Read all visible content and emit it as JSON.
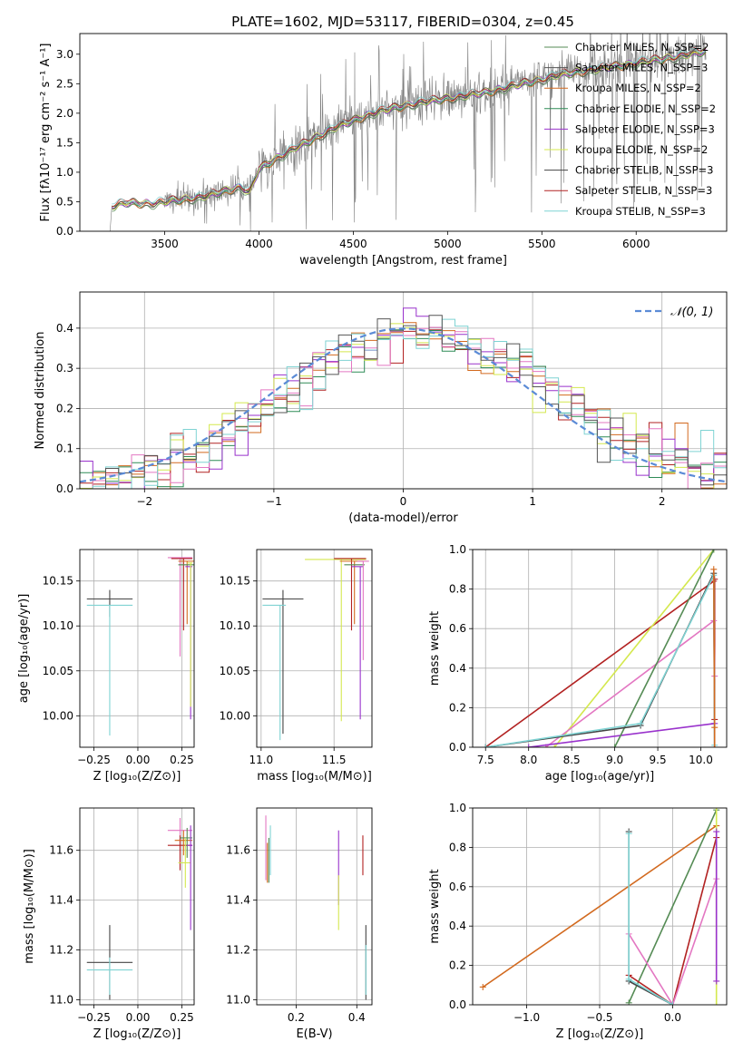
{
  "figure": {
    "title": "PLATE=1602, MJD=53117, FIBERID=0304, z=0.45"
  },
  "chart_data": [
    {
      "id": "spectrum",
      "type": "line",
      "xlabel": "wavelength [Angstrom, rest frame]",
      "ylabel": "Flux [fλ10⁻¹⁷ erg cm⁻² s⁻¹ A⁻¹]",
      "xlim": [
        3050,
        6480
      ],
      "ylim": [
        0,
        3.35
      ],
      "xticks": [
        "3500",
        "4000",
        "4500",
        "5000",
        "5500",
        "6000"
      ],
      "yticks": [
        "0.0",
        "0.5",
        "1.0",
        "1.5",
        "2.0",
        "2.5",
        "3.0"
      ],
      "grid": false,
      "legend_position": "top-right",
      "observed": {
        "color": "#7f7f7f",
        "x_start": 3210,
        "x_end": 6370
      },
      "continuum_points": [
        [
          3210,
          0.0
        ],
        [
          3220,
          0.42
        ],
        [
          3300,
          0.48
        ],
        [
          3450,
          0.47
        ],
        [
          3550,
          0.52
        ],
        [
          3700,
          0.58
        ],
        [
          3900,
          0.75
        ],
        [
          3950,
          0.65
        ],
        [
          4000,
          1.05
        ],
        [
          4100,
          1.25
        ],
        [
          4250,
          1.5
        ],
        [
          4400,
          1.75
        ],
        [
          4600,
          2.0
        ],
        [
          4800,
          2.15
        ],
        [
          5000,
          2.25
        ],
        [
          5200,
          2.35
        ],
        [
          5400,
          2.5
        ],
        [
          5600,
          2.65
        ],
        [
          5800,
          2.75
        ],
        [
          6000,
          2.85
        ],
        [
          6200,
          2.95
        ],
        [
          6370,
          3.05
        ]
      ],
      "series": [
        {
          "name": "Chabrier MILES, N_SSP=2",
          "color": "#548b54"
        },
        {
          "name": "Salpeter MILES, N_SSP=3",
          "color": "#555555"
        },
        {
          "name": "Kroupa MILES, N_SSP=2",
          "color": "#d2691e"
        },
        {
          "name": "Chabrier ELODIE, N_SSP=2",
          "color": "#2e8b57"
        },
        {
          "name": "Salpeter ELODIE, N_SSP=3",
          "color": "#9932cc"
        },
        {
          "name": "Kroupa ELODIE, N_SSP=2",
          "color": "#d4e84e"
        },
        {
          "name": "Chabrier STELIB, N_SSP=3",
          "color": "#444444"
        },
        {
          "name": "Salpeter STELIB, N_SSP=3",
          "color": "#b22222"
        },
        {
          "name": "Kroupa STELIB, N_SSP=3",
          "color": "#7fd3d3"
        }
      ]
    },
    {
      "id": "residuals",
      "type": "line",
      "xlabel": "(data-model)/error",
      "ylabel": "Normed distribution",
      "xlim": [
        -2.5,
        2.5
      ],
      "ylim": [
        0,
        0.49
      ],
      "xticks": [
        -2,
        -1,
        0,
        1,
        2
      ],
      "xtick_labels": [
        "−2",
        "−1",
        "0",
        "1",
        "2"
      ],
      "yticks": [
        "0.0",
        "0.1",
        "0.2",
        "0.3",
        "0.4"
      ],
      "grid": true,
      "legend": "𝒩(0, 1)",
      "legend_position": "top-right",
      "gaussian": {
        "mean": 0,
        "sigma": 1,
        "color": "#5b8bd6"
      },
      "hist_colors": [
        "#d2691e",
        "#b22222",
        "#2e8b57",
        "#9932cc",
        "#d4e84e",
        "#e377c2",
        "#7fd3d3",
        "#555555"
      ],
      "hist_bin_width": 0.1,
      "hist_range": [
        -2.5,
        2.5
      ]
    },
    {
      "id": "age-vs-Z",
      "type": "errorbar",
      "xlabel": "Z [log₁₀(Z/Z⊙)]",
      "ylabel": "age  [log₁₀(age/yr)]",
      "xlim": [
        -0.33,
        0.32
      ],
      "ylim": [
        9.965,
        10.185
      ],
      "xticks": [
        "−0.25",
        "0.00",
        "0.25"
      ],
      "xtick_values": [
        -0.25,
        0,
        0.25
      ],
      "yticks": [
        "10.00",
        "10.05",
        "10.10",
        "10.15"
      ],
      "ytick_values": [
        10.0,
        10.05,
        10.1,
        10.15
      ],
      "grid": true,
      "points": [
        {
          "x": -0.16,
          "y": 10.13,
          "xerr": [
            0.13,
            0.13
          ],
          "yerr": [
            0.02,
            0.01
          ],
          "color": "#444444"
        },
        {
          "x": -0.16,
          "y": 10.123,
          "xerr": [
            0.13,
            0.13
          ],
          "yerr": [
            0.145,
            0.0
          ],
          "color": "#7fd3d3"
        },
        {
          "x": 0.24,
          "y": 10.176,
          "xerr": [
            0.07,
            0.07
          ],
          "yerr": [
            0.11,
            0.0
          ],
          "color": "#e377c2"
        },
        {
          "x": 0.26,
          "y": 10.175,
          "xerr": [
            0.07,
            0.05
          ],
          "yerr": [
            0.08,
            0.0
          ],
          "color": "#b22222"
        },
        {
          "x": 0.28,
          "y": 10.172,
          "xerr": [
            0.05,
            0.04
          ],
          "yerr": [
            0.07,
            0.0
          ],
          "color": "#d2691e"
        },
        {
          "x": 0.28,
          "y": 10.168,
          "xerr": [
            0.05,
            0.04
          ],
          "yerr": [
            0.0,
            0.0
          ],
          "color": "#548b54"
        },
        {
          "x": 0.3,
          "y": 10.166,
          "xerr": [
            0.03,
            0.01
          ],
          "yerr": [
            0.17,
            0.0
          ],
          "color": "#9932cc"
        },
        {
          "x": 0.3,
          "y": 10.17,
          "xerr": [
            0.02,
            0.01
          ],
          "yerr": [
            0.16,
            0.0
          ],
          "color": "#d4e84e"
        }
      ]
    },
    {
      "id": "age-vs-mass",
      "type": "errorbar",
      "xlabel": "mass [log₁₀(M/M⊙)]",
      "ylabel": "",
      "xlim": [
        10.97,
        11.76
      ],
      "ylim": [
        9.965,
        10.185
      ],
      "xticks": [
        "11.0",
        "11.5"
      ],
      "xtick_values": [
        11.0,
        11.5
      ],
      "yticks": [
        "10.00",
        "10.05",
        "10.10",
        "10.15"
      ],
      "ytick_values": [
        10.0,
        10.05,
        10.1,
        10.15
      ],
      "grid": true,
      "points": [
        {
          "x": 11.15,
          "y": 10.13,
          "xerr": [
            0.14,
            0.14
          ],
          "yerr": [
            0.15,
            0.01
          ],
          "color": "#444444"
        },
        {
          "x": 11.13,
          "y": 10.123,
          "xerr": [
            0.12,
            0.04
          ],
          "yerr": [
            0.15,
            0.0
          ],
          "color": "#7fd3d3"
        },
        {
          "x": 11.55,
          "y": 10.174,
          "xerr": [
            0.25,
            0.17
          ],
          "yerr": [
            0.18,
            0.0
          ],
          "color": "#d4e84e"
        },
        {
          "x": 11.62,
          "y": 10.175,
          "xerr": [
            0.12,
            0.1
          ],
          "yerr": [
            0.08,
            0.0
          ],
          "color": "#b22222"
        },
        {
          "x": 11.64,
          "y": 10.172,
          "xerr": [
            0.1,
            0.06
          ],
          "yerr": [
            0.07,
            0.0
          ],
          "color": "#d2691e"
        },
        {
          "x": 11.65,
          "y": 10.168,
          "xerr": [
            0.08,
            0.06
          ],
          "yerr": [
            0.0,
            0.0
          ],
          "color": "#548b54"
        },
        {
          "x": 11.68,
          "y": 10.166,
          "xerr": [
            0.06,
            0.02
          ],
          "yerr": [
            0.17,
            0.0
          ],
          "color": "#9932cc"
        },
        {
          "x": 11.7,
          "y": 10.172,
          "xerr": [
            0.04,
            0.04
          ],
          "yerr": [
            0.11,
            0.0
          ],
          "color": "#e377c2"
        }
      ]
    },
    {
      "id": "weight-vs-age",
      "type": "line",
      "xlabel": "age  [log₁₀(age/yr)]",
      "ylabel": "mass weight",
      "xlim": [
        7.35,
        10.3
      ],
      "ylim": [
        0,
        1.0
      ],
      "xticks": [
        "7.5",
        "8.0",
        "8.5",
        "9.0",
        "9.5",
        "10.0"
      ],
      "xtick_values": [
        7.5,
        8.0,
        8.5,
        9.0,
        9.5,
        10.0
      ],
      "yticks": [
        "0.0",
        "0.2",
        "0.4",
        "0.6",
        "0.8",
        "1.0"
      ],
      "ytick_values": [
        0,
        0.2,
        0.4,
        0.6,
        0.8,
        1.0
      ],
      "grid": true,
      "series": [
        {
          "color": "#b22222",
          "x": [
            7.5,
            10.15,
            10.16,
            10.16
          ],
          "y": [
            0.0,
            0.84,
            0.85,
            0.14
          ]
        },
        {
          "color": "#d4e84e",
          "x": [
            8.3,
            10.15
          ],
          "y": [
            0.0,
            1.0
          ]
        },
        {
          "color": "#e377c2",
          "x": [
            8.2,
            10.15,
            10.16
          ],
          "y": [
            0.0,
            0.64,
            0.36
          ]
        },
        {
          "color": "#9932cc",
          "x": [
            8.0,
            10.16
          ],
          "y": [
            0.0,
            0.12
          ]
        },
        {
          "color": "#548b54",
          "x": [
            9.0,
            10.15
          ],
          "y": [
            0.0,
            1.0
          ]
        },
        {
          "color": "#444444",
          "x": [
            7.5,
            9.3,
            10.15,
            10.16
          ],
          "y": [
            0.0,
            0.11,
            0.88,
            0.0
          ]
        },
        {
          "color": "#7fd3d3",
          "x": [
            7.5,
            9.3,
            10.15,
            10.16
          ],
          "y": [
            0.0,
            0.12,
            0.87,
            0.01
          ]
        },
        {
          "color": "#d2691e",
          "x": [
            10.15,
            10.16,
            10.16
          ],
          "y": [
            0.9,
            0.1,
            0.0
          ]
        }
      ]
    },
    {
      "id": "mass-vs-Z",
      "type": "errorbar",
      "xlabel": "Z [log₁₀(Z/Z⊙)]",
      "ylabel": "mass [log₁₀(M/M⊙)]",
      "xlim": [
        -0.33,
        0.32
      ],
      "ylim": [
        10.98,
        11.77
      ],
      "xticks": [
        "−0.25",
        "0.00",
        "0.25"
      ],
      "xtick_values": [
        -0.25,
        0,
        0.25
      ],
      "yticks": [
        "11.0",
        "11.2",
        "11.4",
        "11.6"
      ],
      "ytick_values": [
        11.0,
        11.2,
        11.4,
        11.6
      ],
      "grid": true,
      "points": [
        {
          "x": -0.16,
          "y": 11.15,
          "xerr": [
            0.13,
            0.13
          ],
          "yerr": [
            0.15,
            0.15
          ],
          "color": "#444444"
        },
        {
          "x": -0.16,
          "y": 11.12,
          "xerr": [
            0.13,
            0.13
          ],
          "yerr": [
            0.1,
            0.05
          ],
          "color": "#7fd3d3"
        },
        {
          "x": 0.24,
          "y": 11.68,
          "xerr": [
            0.07,
            0.07
          ],
          "yerr": [
            0.16,
            0.05
          ],
          "color": "#e377c2"
        },
        {
          "x": 0.24,
          "y": 11.62,
          "xerr": [
            0.07,
            0.07
          ],
          "yerr": [
            0.1,
            0.04
          ],
          "color": "#b22222"
        },
        {
          "x": 0.26,
          "y": 11.64,
          "xerr": [
            0.05,
            0.05
          ],
          "yerr": [
            0.06,
            0.04
          ],
          "color": "#d2691e"
        },
        {
          "x": 0.28,
          "y": 11.65,
          "xerr": [
            0.04,
            0.03
          ],
          "yerr": [
            0.08,
            0.04
          ],
          "color": "#548b54"
        },
        {
          "x": 0.27,
          "y": 11.55,
          "xerr": [
            0.04,
            0.03
          ],
          "yerr": [
            0.1,
            0.1
          ],
          "color": "#d4e84e"
        },
        {
          "x": 0.3,
          "y": 11.62,
          "xerr": [
            0.02,
            0.01
          ],
          "yerr": [
            0.34,
            0.08
          ],
          "color": "#9932cc"
        }
      ]
    },
    {
      "id": "mass-vs-EBV",
      "type": "errorbar",
      "xlabel": "E(B-V)",
      "ylabel": "",
      "xlim": [
        0.07,
        0.45
      ],
      "ylim": [
        10.98,
        11.77
      ],
      "xticks": [
        "0.2",
        "0.4"
      ],
      "xtick_values": [
        0.2,
        0.4
      ],
      "yticks": [
        "11.0",
        "11.2",
        "11.4",
        "11.6"
      ],
      "ytick_values": [
        11.0,
        11.2,
        11.4,
        11.6
      ],
      "grid": true,
      "points": [
        {
          "x": 0.1,
          "y": 11.62,
          "xerr": [
            0,
            0
          ],
          "yerr": [
            0.14,
            0.12
          ],
          "color": "#e377c2"
        },
        {
          "x": 0.105,
          "y": 11.55,
          "xerr": [
            0,
            0
          ],
          "yerr": [
            0.08,
            0.08
          ],
          "color": "#d2691e"
        },
        {
          "x": 0.11,
          "y": 11.57,
          "xerr": [
            0,
            0
          ],
          "yerr": [
            0.1,
            0.08
          ],
          "color": "#548b54"
        },
        {
          "x": 0.115,
          "y": 11.6,
          "xerr": [
            0,
            0
          ],
          "yerr": [
            0.1,
            0.1
          ],
          "color": "#7fd3d3"
        },
        {
          "x": 0.34,
          "y": 11.52,
          "xerr": [
            0,
            0
          ],
          "yerr": [
            0.14,
            0.16
          ],
          "color": "#9932cc"
        },
        {
          "x": 0.34,
          "y": 11.4,
          "xerr": [
            0,
            0
          ],
          "yerr": [
            0.12,
            0.1
          ],
          "color": "#d4e84e"
        },
        {
          "x": 0.42,
          "y": 11.58,
          "xerr": [
            0,
            0
          ],
          "yerr": [
            0.08,
            0.08
          ],
          "color": "#b22222"
        },
        {
          "x": 0.43,
          "y": 11.15,
          "xerr": [
            0,
            0
          ],
          "yerr": [
            0.15,
            0.15
          ],
          "color": "#444444"
        },
        {
          "x": 0.43,
          "y": 11.12,
          "xerr": [
            0,
            0
          ],
          "yerr": [
            0.1,
            0.1
          ],
          "color": "#7fd3d3"
        }
      ]
    },
    {
      "id": "weight-vs-Z",
      "type": "line",
      "xlabel": "Z [log₁₀(Z/Z⊙)]",
      "ylabel": "mass weight",
      "xlim": [
        -1.37,
        0.37
      ],
      "ylim": [
        0,
        1.0
      ],
      "xticks": [
        "−1.0",
        "−0.5",
        "0.0"
      ],
      "xtick_values": [
        -1.0,
        -0.5,
        0.0
      ],
      "yticks": [
        "0.0",
        "0.2",
        "0.4",
        "0.6",
        "0.8",
        "1.0"
      ],
      "ytick_values": [
        0,
        0.2,
        0.4,
        0.6,
        0.8,
        1.0
      ],
      "grid": true,
      "series": [
        {
          "color": "#d2691e",
          "x": [
            -1.3,
            0.3
          ],
          "y": [
            0.09,
            0.91
          ]
        },
        {
          "color": "#548b54",
          "x": [
            -0.3,
            0.3
          ],
          "y": [
            0.01,
            0.99
          ]
        },
        {
          "color": "#b22222",
          "x": [
            -0.3,
            0.0,
            0.3
          ],
          "y": [
            0.15,
            0.0,
            0.85
          ]
        },
        {
          "color": "#e377c2",
          "x": [
            -0.3,
            0.0,
            0.3
          ],
          "y": [
            0.36,
            0.0,
            0.64
          ]
        },
        {
          "color": "#444444",
          "x": [
            -0.3,
            -0.3,
            0.0
          ],
          "y": [
            0.88,
            0.12,
            0.0
          ]
        },
        {
          "color": "#7fd3d3",
          "x": [
            -0.3,
            -0.3,
            0.0
          ],
          "y": [
            0.87,
            0.13,
            0.0
          ]
        },
        {
          "color": "#d4e84e",
          "x": [
            0.3,
            0.3
          ],
          "y": [
            0.0,
            1.0
          ]
        },
        {
          "color": "#9932cc",
          "x": [
            0.3,
            0.3
          ],
          "y": [
            0.12,
            0.88
          ]
        }
      ]
    }
  ]
}
